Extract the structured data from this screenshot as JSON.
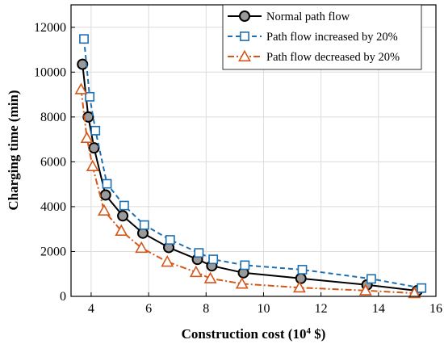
{
  "chart_data": {
    "type": "line",
    "xlabel_main": "Construction cost (10",
    "xlabel_sup": "4",
    "xlabel_tail": " $)",
    "ylabel": "Charging time (min)",
    "xlim": [
      3.3,
      16
    ],
    "ylim": [
      0,
      13000
    ],
    "xticks": [
      4,
      6,
      8,
      10,
      12,
      14,
      16
    ],
    "yticks": [
      0,
      2000,
      4000,
      6000,
      8000,
      10000,
      12000
    ],
    "grid": true,
    "legend_position": "top-right",
    "series": [
      {
        "name": "Normal path flow",
        "color": "#000000",
        "dash": "solid",
        "marker": "circle",
        "marker_fill": "#9a9a9a",
        "points": [
          [
            3.7,
            10350
          ],
          [
            3.9,
            8000
          ],
          [
            4.1,
            6620
          ],
          [
            4.5,
            4520
          ],
          [
            5.1,
            3590
          ],
          [
            5.8,
            2820
          ],
          [
            6.7,
            2180
          ],
          [
            7.7,
            1650
          ],
          [
            8.2,
            1360
          ],
          [
            9.3,
            1050
          ],
          [
            11.3,
            800
          ],
          [
            13.6,
            510
          ],
          [
            15.35,
            250
          ]
        ]
      },
      {
        "name": "Path flow increased by 20%",
        "color": "#1f6fb0",
        "dash": "dashed",
        "marker": "square",
        "marker_fill": "#ffffff",
        "points": [
          [
            3.75,
            11480
          ],
          [
            3.95,
            8900
          ],
          [
            4.15,
            7390
          ],
          [
            4.55,
            5020
          ],
          [
            5.15,
            4050
          ],
          [
            5.85,
            3180
          ],
          [
            6.75,
            2520
          ],
          [
            7.75,
            1940
          ],
          [
            8.25,
            1650
          ],
          [
            9.35,
            1390
          ],
          [
            11.35,
            1190
          ],
          [
            13.75,
            780
          ],
          [
            15.5,
            370
          ]
        ]
      },
      {
        "name": "Path flow decreased by 20%",
        "color": "#d4571a",
        "dash": "dashdot",
        "marker": "triangle",
        "marker_fill": "#ffffff",
        "points": [
          [
            3.65,
            9230
          ],
          [
            3.85,
            7060
          ],
          [
            4.05,
            5800
          ],
          [
            4.45,
            3820
          ],
          [
            5.05,
            2920
          ],
          [
            5.75,
            2160
          ],
          [
            6.65,
            1540
          ],
          [
            7.65,
            1080
          ],
          [
            8.15,
            800
          ],
          [
            9.25,
            560
          ],
          [
            11.25,
            390
          ],
          [
            13.55,
            260
          ],
          [
            15.25,
            140
          ]
        ]
      }
    ]
  }
}
